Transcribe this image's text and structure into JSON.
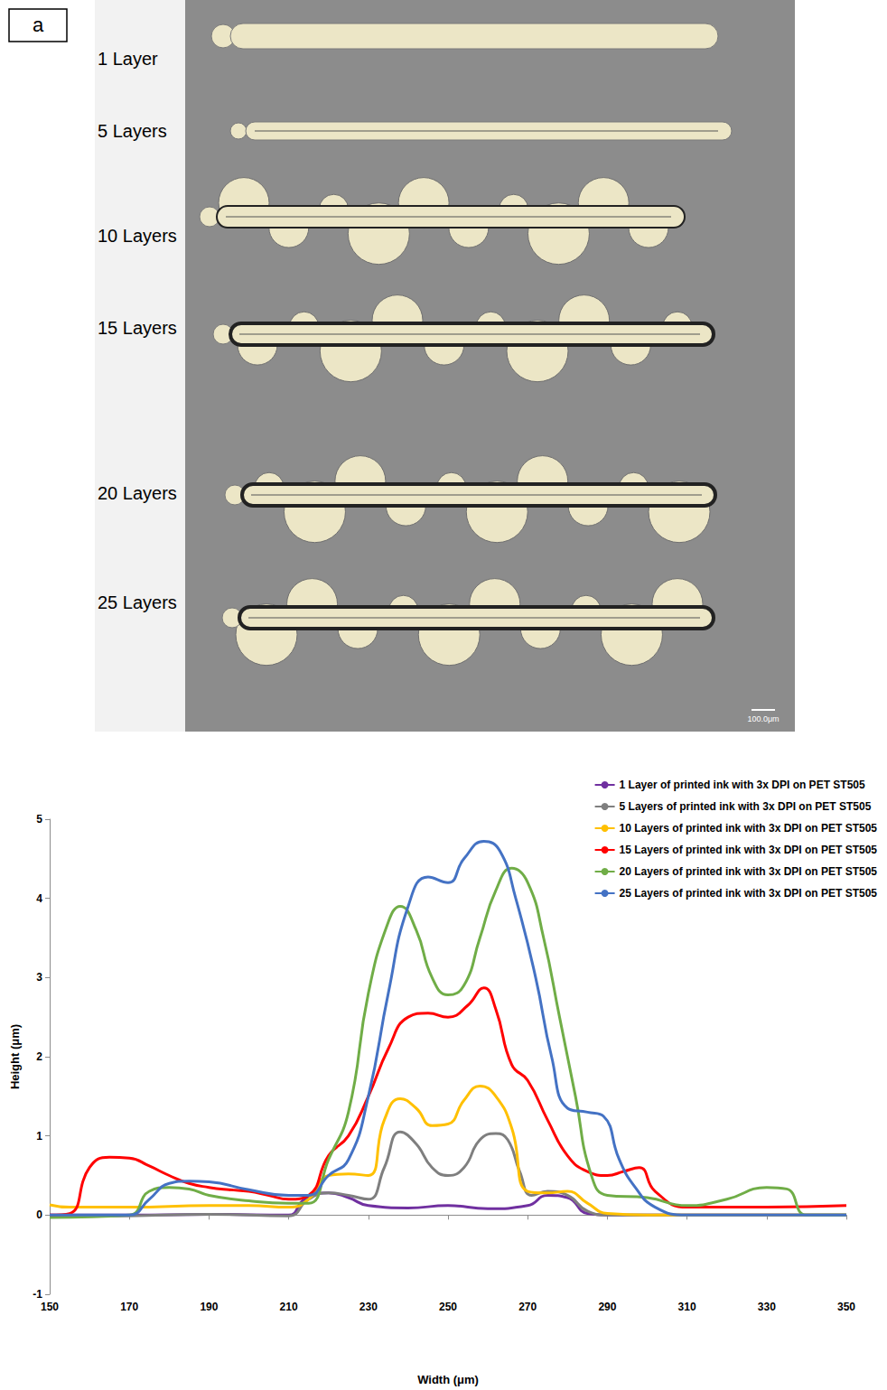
{
  "figure_a": {
    "panel_label": "a",
    "rows": [
      "1 Layer",
      "5 Layers",
      "10 Layers",
      "15 Layers",
      "20 Layers",
      "25 Layers"
    ],
    "scale_bar": "100.0μm"
  },
  "chart_data": {
    "type": "line",
    "x_label": "Width (μm)",
    "y_label": "Height (μm)",
    "xlim": [
      150,
      350
    ],
    "xticks": [
      150,
      170,
      190,
      210,
      230,
      250,
      270,
      290,
      310,
      330,
      350
    ],
    "ylim": [
      -1,
      5
    ],
    "yticks": [
      -1,
      0,
      1,
      2,
      3,
      4,
      5
    ],
    "grid": false,
    "legend": "top-right",
    "series": [
      {
        "name": "1 Layer of printed ink with 3x DPI on PET ST505",
        "color": "#7030a0",
        "x": [
          150,
          170,
          190,
          210,
          214,
          220,
          225,
          230,
          240,
          250,
          260,
          270,
          275,
          280,
          285,
          290,
          310,
          350
        ],
        "values": [
          0,
          0,
          0.01,
          0,
          0.2,
          0.28,
          0.22,
          0.12,
          0.09,
          0.12,
          0.08,
          0.12,
          0.25,
          0.22,
          0.02,
          0,
          0,
          0
        ]
      },
      {
        "name": "5 Layers of printed ink with 3x DPI on PET ST505",
        "color": "#7f7f7f",
        "x": [
          150,
          170,
          190,
          210,
          215,
          220,
          225,
          230,
          234,
          238,
          242,
          246,
          250,
          254,
          258,
          262,
          265,
          268,
          271,
          275,
          280,
          285,
          290,
          310,
          350
        ],
        "values": [
          -0.02,
          -0.01,
          0.01,
          -0.01,
          0.2,
          0.28,
          0.25,
          0.2,
          0.6,
          1.05,
          0.9,
          0.6,
          0.5,
          0.6,
          0.95,
          1.03,
          0.95,
          0.55,
          0.25,
          0.3,
          0.25,
          0.05,
          0,
          0,
          0
        ]
      },
      {
        "name": "10 Layers of printed ink with 3x DPI on PET ST505",
        "color": "#ffc000",
        "x": [
          150,
          155,
          170,
          190,
          200,
          210,
          215,
          220,
          225,
          230,
          234,
          238,
          242,
          246,
          250,
          254,
          258,
          262,
          266,
          270,
          275,
          280,
          285,
          290,
          300,
          350
        ],
        "values": [
          0.13,
          0.1,
          0.1,
          0.12,
          0.12,
          0.1,
          0.2,
          0.5,
          0.52,
          0.5,
          1.2,
          1.47,
          1.35,
          1.13,
          1.15,
          1.45,
          1.63,
          1.5,
          1.1,
          0.3,
          0.28,
          0.3,
          0.15,
          0.02,
          0,
          0
        ]
      },
      {
        "name": "15 Layers of printed ink with 3x DPI on PET ST505",
        "color": "#ff0000",
        "x": [
          150,
          155,
          160,
          165,
          170,
          175,
          180,
          185,
          190,
          195,
          200,
          205,
          210,
          215,
          220,
          225,
          230,
          235,
          240,
          245,
          250,
          255,
          259,
          262,
          266,
          270,
          275,
          280,
          285,
          290,
          294,
          298,
          302,
          310,
          330,
          350
        ],
        "values": [
          0,
          0.02,
          0.6,
          0.73,
          0.72,
          0.62,
          0.5,
          0.4,
          0.35,
          0.32,
          0.3,
          0.25,
          0.2,
          0.25,
          0.75,
          1.0,
          1.5,
          2.1,
          2.5,
          2.55,
          2.5,
          2.65,
          2.87,
          2.6,
          1.9,
          1.7,
          1.2,
          0.75,
          0.55,
          0.5,
          0.55,
          0.6,
          0.3,
          0.1,
          0.1,
          0.12
        ]
      },
      {
        "name": "20 Layers of printed ink with 3x DPI on PET ST505",
        "color": "#70ad47",
        "x": [
          150,
          170,
          175,
          180,
          185,
          190,
          200,
          210,
          215,
          220,
          225,
          230,
          235,
          238,
          242,
          246,
          250,
          254,
          258,
          262,
          266,
          270,
          274,
          278,
          282,
          286,
          290,
          300,
          310,
          320,
          330,
          335,
          340,
          350
        ],
        "values": [
          -0.03,
          0,
          0.3,
          0.35,
          0.33,
          0.25,
          0.18,
          0.15,
          0.15,
          0.7,
          1.3,
          2.8,
          3.7,
          3.9,
          3.6,
          3.0,
          2.78,
          2.9,
          3.5,
          4.1,
          4.38,
          4.2,
          3.5,
          2.5,
          1.5,
          0.5,
          0.25,
          0.22,
          0.12,
          0.2,
          0.35,
          0.33,
          0,
          0
        ]
      },
      {
        "name": "25 Layers of printed ink with 3x DPI on PET ST505",
        "color": "#4472c4",
        "x": [
          150,
          170,
          175,
          180,
          185,
          190,
          200,
          210,
          215,
          220,
          225,
          230,
          235,
          240,
          245,
          250,
          254,
          259,
          263,
          267,
          272,
          276,
          280,
          285,
          289,
          293,
          297,
          302,
          310,
          350
        ],
        "values": [
          0,
          0,
          0.2,
          0.4,
          0.43,
          0.42,
          0.32,
          0.25,
          0.25,
          0.5,
          0.7,
          1.5,
          2.8,
          3.9,
          4.27,
          4.2,
          4.5,
          4.72,
          4.6,
          4.0,
          3.0,
          2.0,
          1.35,
          1.3,
          1.25,
          0.7,
          0.35,
          0.1,
          0,
          0
        ]
      }
    ]
  }
}
